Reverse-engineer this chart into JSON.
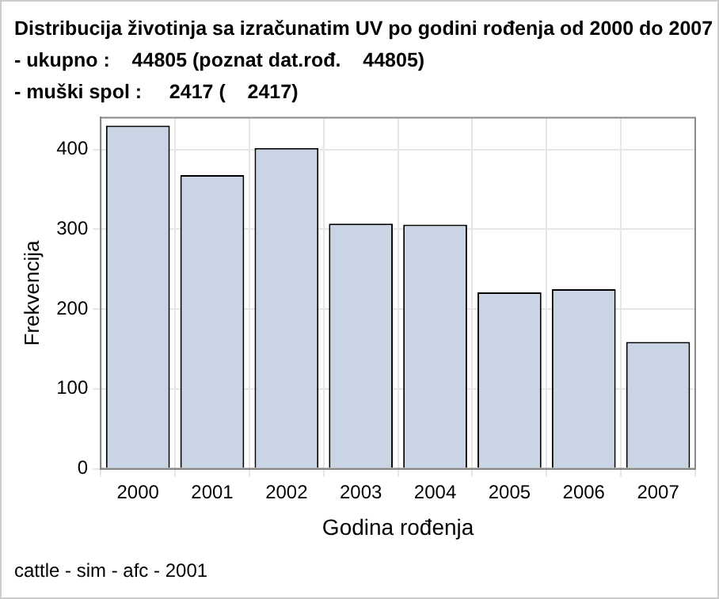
{
  "chart_data": {
    "type": "bar",
    "title": "Distribucija životinja sa izračunatim UV po godini rođenja od 2000 do 2007",
    "subtitle": "- ukupno :    44805 (poznat dat.rođ.    44805)\n- muški spol :     2417 (    2417)",
    "xlabel": "Godina rođenja",
    "ylabel": "Frekvencija",
    "categories": [
      "2000",
      "2001",
      "2002",
      "2003",
      "2004",
      "2005",
      "2006",
      "2007"
    ],
    "values": [
      430,
      368,
      402,
      307,
      306,
      221,
      225,
      159
    ],
    "color": "#c9d5e5",
    "ylim": [
      0,
      440
    ],
    "yticks": [
      0,
      100,
      200,
      300,
      400
    ],
    "grid": true,
    "legend": false,
    "annotations": [
      "cattle - sim - afc - 2001"
    ]
  }
}
